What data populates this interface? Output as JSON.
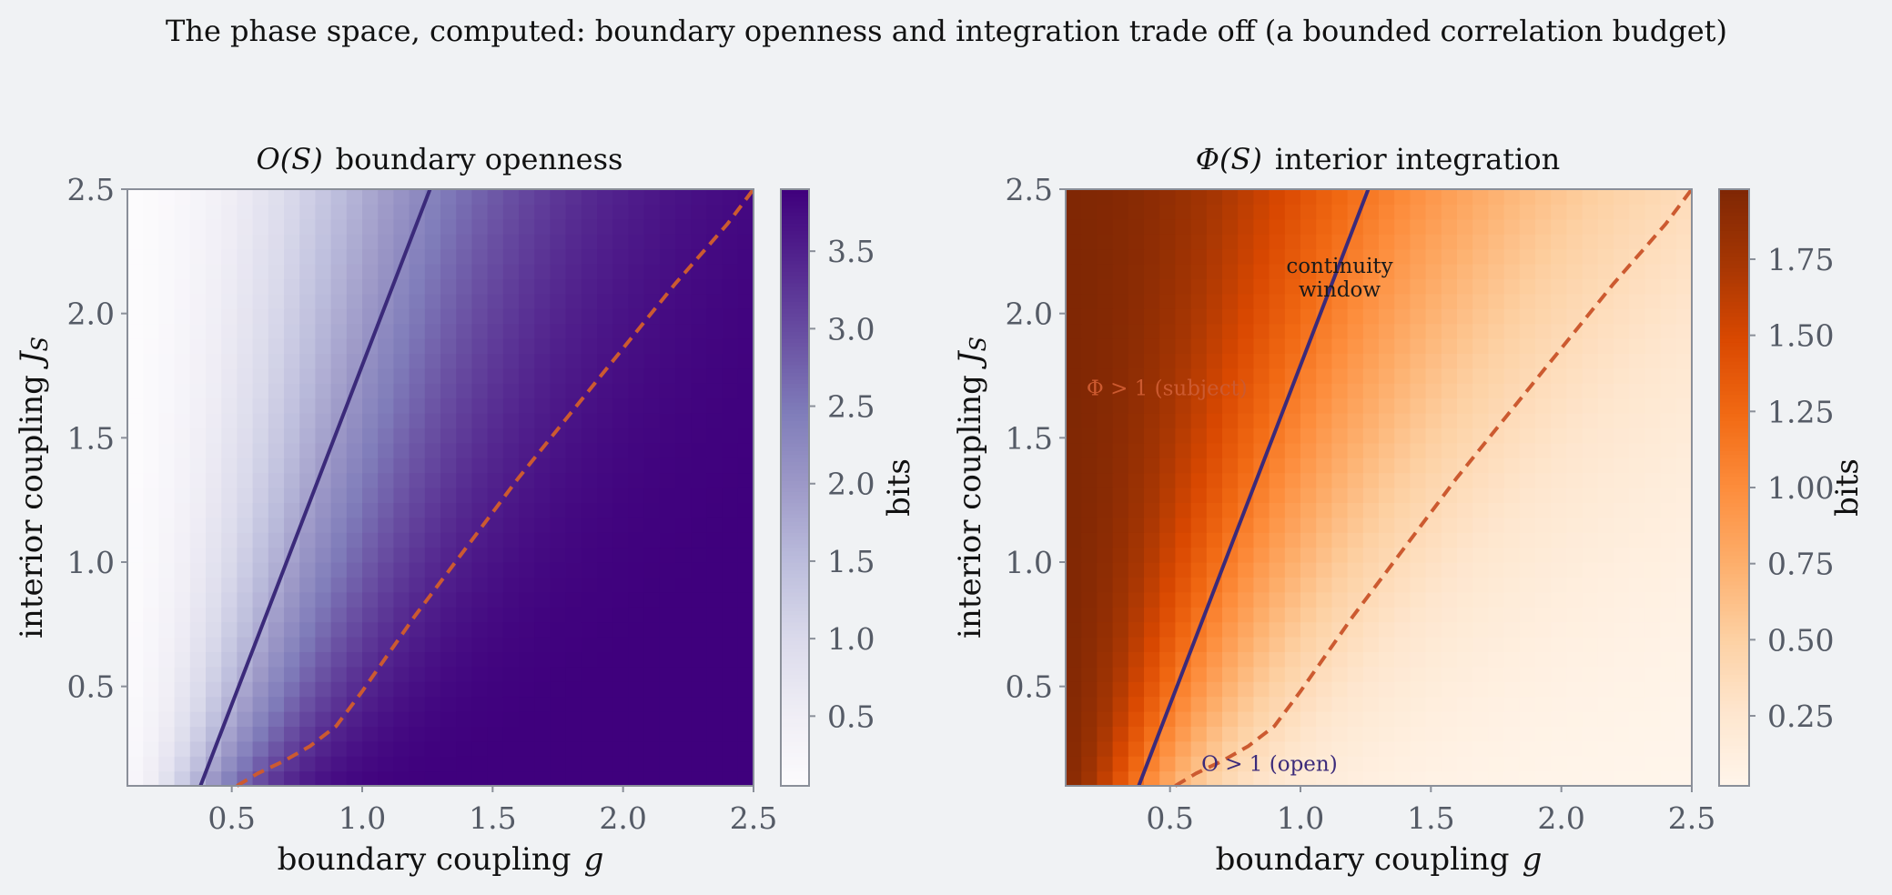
{
  "figure": {
    "title": "The phase space, computed:  boundary openness and integration trade off (a bounded correlation budget)"
  },
  "chart_data": [
    {
      "type": "heatmap",
      "title_math": "O(S)",
      "title_text": "boundary openness",
      "xlabel_text": "boundary coupling",
      "xlabel_math": "g",
      "ylabel_text": "interior coupling",
      "ylabel_math": "J",
      "ylabel_sub": "S",
      "xlim": [
        0.1,
        2.5
      ],
      "ylim": [
        0.1,
        2.5
      ],
      "xticks": [
        "0.5",
        "1.0",
        "1.5",
        "2.0",
        "2.5"
      ],
      "yticks": [
        "0.5",
        "1.0",
        "1.5",
        "2.0",
        "2.5"
      ],
      "colormap": "Purples",
      "colorbar": {
        "label": "bits",
        "min": 0.05,
        "max": 3.9,
        "ticks": [
          "0.5",
          "1.0",
          "1.5",
          "2.0",
          "2.5",
          "3.0",
          "3.5"
        ]
      },
      "grid": "40x40",
      "lines": [
        {
          "role": "Phi = 1 contour",
          "style": "solid",
          "color": "#3b2a7a",
          "x": [
            0.38,
            1.26
          ],
          "y": [
            0.1,
            2.5
          ]
        },
        {
          "role": "O = 1 contour",
          "style": "dashed",
          "color": "#cc5a30",
          "x": [
            0.52,
            0.6,
            0.7,
            0.8,
            0.9,
            1.0,
            1.2,
            1.4,
            1.6,
            1.8,
            2.0,
            2.2,
            2.4,
            2.5
          ],
          "y": [
            0.1,
            0.15,
            0.2,
            0.26,
            0.34,
            0.48,
            0.78,
            1.06,
            1.34,
            1.6,
            1.86,
            2.12,
            2.36,
            2.5
          ]
        }
      ],
      "annotations": []
    },
    {
      "type": "heatmap",
      "title_math": "Φ(S)",
      "title_text": "interior integration",
      "xlabel_text": "boundary coupling",
      "xlabel_math": "g",
      "ylabel_text": "interior coupling",
      "ylabel_math": "J",
      "ylabel_sub": "S",
      "xlim": [
        0.1,
        2.5
      ],
      "ylim": [
        0.1,
        2.5
      ],
      "xticks": [
        "0.5",
        "1.0",
        "1.5",
        "2.0",
        "2.5"
      ],
      "yticks": [
        "0.5",
        "1.0",
        "1.5",
        "2.0",
        "2.5"
      ],
      "colormap": "Oranges",
      "colorbar": {
        "label": "bits",
        "min": 0.02,
        "max": 1.98,
        "ticks": [
          "0.25",
          "0.50",
          "0.75",
          "1.00",
          "1.25",
          "1.50",
          "1.75"
        ]
      },
      "grid": "40x40",
      "lines": [
        {
          "role": "Phi = 1 contour",
          "style": "solid",
          "color": "#3b2a7a",
          "x": [
            0.38,
            1.26
          ],
          "y": [
            0.1,
            2.5
          ]
        },
        {
          "role": "O = 1 contour",
          "style": "dashed",
          "color": "#cc5a30",
          "x": [
            0.52,
            0.6,
            0.7,
            0.8,
            0.9,
            1.0,
            1.2,
            1.4,
            1.6,
            1.8,
            2.0,
            2.2,
            2.4,
            2.5
          ],
          "y": [
            0.1,
            0.15,
            0.2,
            0.26,
            0.34,
            0.48,
            0.78,
            1.06,
            1.34,
            1.6,
            1.86,
            2.12,
            2.36,
            2.5
          ]
        }
      ],
      "annotations": [
        {
          "text_line1": "continuity",
          "text_line2": "window",
          "x": 1.15,
          "y": 2.12,
          "color": "#1a1a1a"
        },
        {
          "text": "Φ > 1 (subject)",
          "x": 0.18,
          "y": 1.7,
          "color": "#cc5a30"
        },
        {
          "text": "O > 1 (open)",
          "x": 0.62,
          "y": 0.19,
          "color": "#3b2a7a"
        }
      ]
    }
  ]
}
